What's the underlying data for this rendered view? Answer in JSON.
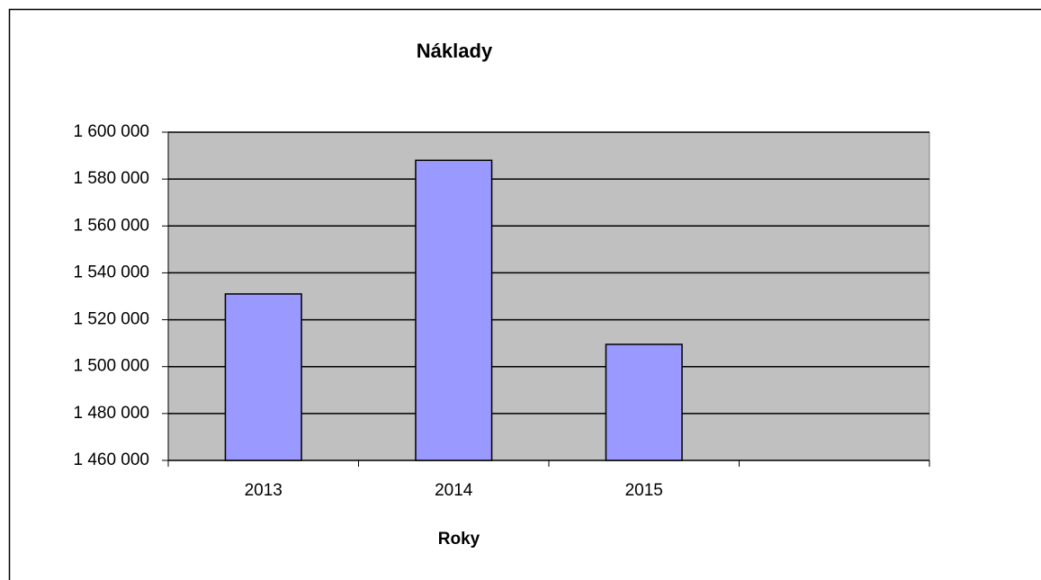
{
  "chart_data": {
    "type": "bar",
    "title": "Náklady",
    "x_label": "Roky",
    "categories": [
      "2013",
      "2014",
      "2015",
      null
    ],
    "values": [
      1531000,
      1588000,
      1509500,
      null
    ],
    "color": "#9999ff",
    "ylim": [
      1460000,
      1600000
    ],
    "yticks": [
      {
        "value": 1460000,
        "label": "1 460 000"
      },
      {
        "value": 1480000,
        "label": "1 480 000"
      },
      {
        "value": 1500000,
        "label": "1 500 000"
      },
      {
        "value": 1520000,
        "label": "1 520 000"
      },
      {
        "value": 1540000,
        "label": "1 540 000"
      },
      {
        "value": 1560000,
        "label": "1 560 000"
      },
      {
        "value": 1580000,
        "label": "1 580 000"
      },
      {
        "value": 1600000,
        "label": "1 600 000"
      }
    ],
    "grid": true
  }
}
